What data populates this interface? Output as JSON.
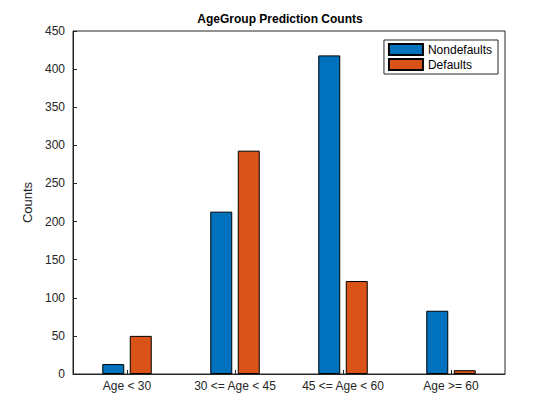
{
  "chart_data": {
    "type": "bar",
    "title": "AgeGroup Prediction Counts",
    "ylabel": "Counts",
    "categories": [
      "Age < 30",
      "30 <= Age < 45",
      "45 <= Age < 60",
      "Age >= 60"
    ],
    "series": [
      {
        "name": "Nondefaults",
        "color": "#0072BD",
        "values": [
          13,
          213,
          418,
          83
        ]
      },
      {
        "name": "Defaults",
        "color": "#D95319",
        "values": [
          50,
          293,
          122,
          5
        ]
      }
    ],
    "ylim": [
      0,
      450
    ],
    "yticks": [
      0,
      50,
      100,
      150,
      200,
      250,
      300,
      350,
      400,
      450
    ],
    "grid": false,
    "legend": "northeast"
  }
}
